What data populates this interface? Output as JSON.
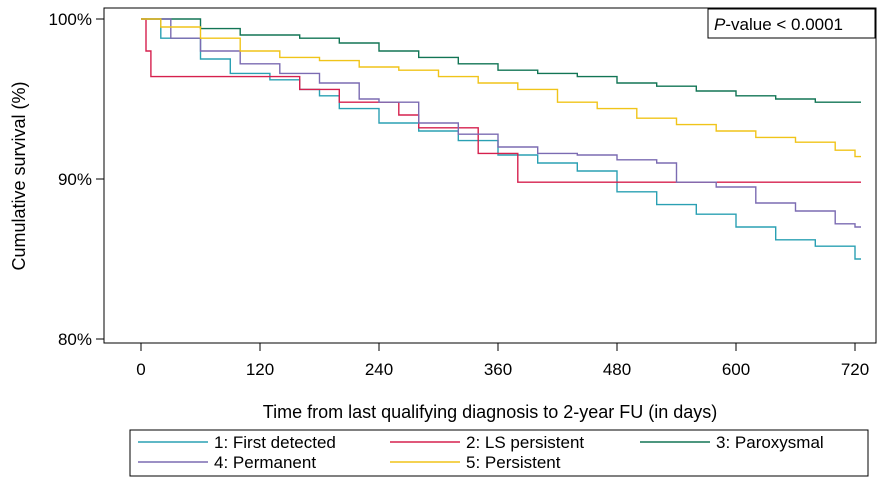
{
  "chart_data": {
    "type": "line",
    "subtype": "kaplan-meier step curves",
    "title": "",
    "xlabel": "Time from last qualifying diagnosis to 2-year FU (in days)",
    "ylabel": "Cumulative survival (%)",
    "xlim": [
      -20,
      735
    ],
    "ylim": [
      79,
      100
    ],
    "xticks": [
      0,
      120,
      240,
      360,
      480,
      600,
      720
    ],
    "xtick_labels": [
      "0",
      "120",
      "240",
      "360",
      "480",
      "600",
      "720"
    ],
    "yticks": [
      80,
      90,
      100
    ],
    "ytick_labels": [
      "80%",
      "90%",
      "100%"
    ],
    "grid": false,
    "annotation": {
      "italic": "P",
      "rest": "-value < 0.0001"
    },
    "legend_position": "bottom",
    "series": [
      {
        "name": "1: First detected",
        "color": "#2aa0b3",
        "x": [
          0,
          20,
          60,
          90,
          130,
          160,
          180,
          200,
          240,
          280,
          320,
          360,
          400,
          440,
          480,
          520,
          560,
          600,
          640,
          680,
          720
        ],
        "y": [
          100,
          98.8,
          97.5,
          96.6,
          96.2,
          95.6,
          95.2,
          94.4,
          93.5,
          93.0,
          92.4,
          91.5,
          91.0,
          90.5,
          89.2,
          88.4,
          87.8,
          87.0,
          86.2,
          85.8,
          85.0
        ]
      },
      {
        "name": "2: LS persistent",
        "color": "#d6204e",
        "x": [
          0,
          5,
          10,
          130,
          160,
          200,
          240,
          260,
          280,
          340,
          380,
          720
        ],
        "y": [
          100,
          98.0,
          96.4,
          96.4,
          95.6,
          94.8,
          94.8,
          94.0,
          93.2,
          91.6,
          89.8,
          89.8
        ]
      },
      {
        "name": "3: Paroxysmal",
        "color": "#127555",
        "x": [
          0,
          20,
          60,
          100,
          160,
          200,
          240,
          280,
          320,
          360,
          400,
          440,
          480,
          520,
          560,
          600,
          640,
          680,
          720
        ],
        "y": [
          100,
          100,
          99.4,
          99.0,
          98.8,
          98.5,
          98.0,
          97.6,
          97.2,
          96.8,
          96.6,
          96.4,
          96.0,
          95.8,
          95.5,
          95.2,
          95.0,
          94.8,
          94.8
        ]
      },
      {
        "name": "4: Permanent",
        "color": "#7b6bb2",
        "x": [
          0,
          30,
          60,
          100,
          140,
          180,
          220,
          240,
          280,
          320,
          360,
          400,
          440,
          480,
          520,
          540,
          580,
          620,
          660,
          700,
          720
        ],
        "y": [
          100,
          98.8,
          98.0,
          97.2,
          96.6,
          96.0,
          95.0,
          94.8,
          93.5,
          92.8,
          92.0,
          91.6,
          91.5,
          91.2,
          91.0,
          89.8,
          89.5,
          88.5,
          88.0,
          87.2,
          87.0
        ]
      },
      {
        "name": "5: Persistent",
        "color": "#f0c419",
        "x": [
          0,
          20,
          60,
          100,
          140,
          180,
          220,
          260,
          300,
          340,
          380,
          420,
          460,
          500,
          540,
          580,
          620,
          660,
          700,
          720
        ],
        "y": [
          100,
          99.5,
          98.8,
          98.0,
          97.6,
          97.4,
          97.0,
          96.8,
          96.4,
          96.0,
          95.6,
          94.8,
          94.4,
          93.8,
          93.4,
          93.0,
          92.6,
          92.3,
          91.8,
          91.4
        ]
      }
    ]
  }
}
